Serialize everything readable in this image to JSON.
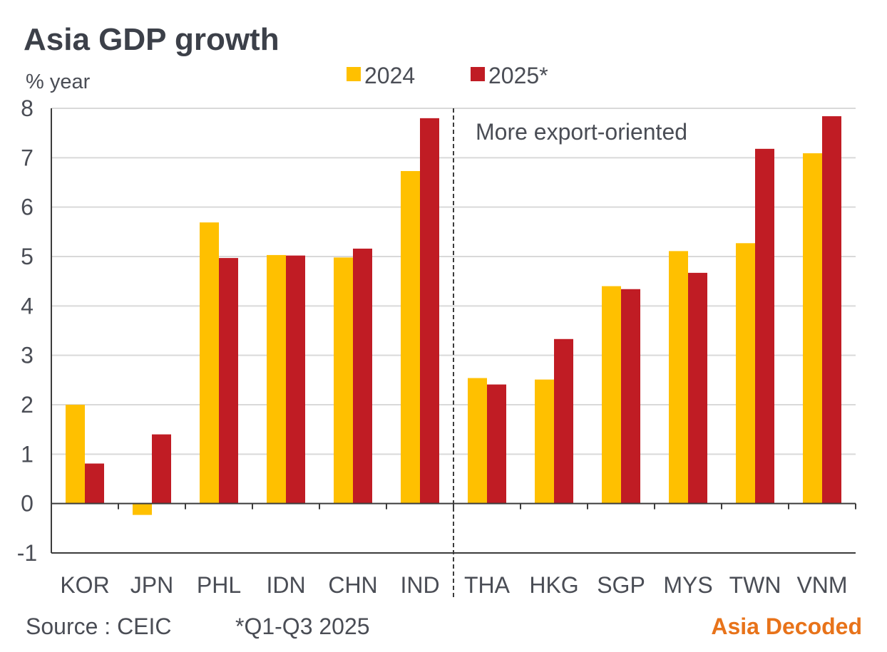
{
  "chart_data": {
    "type": "bar",
    "title": "Asia GDP growth",
    "ylabel": "% year",
    "xlabel": "",
    "ylim": [
      -1,
      8
    ],
    "yticks": [
      "-1",
      "0",
      "1",
      "2",
      "3",
      "4",
      "5",
      "6",
      "7",
      "8"
    ],
    "categories": [
      "KOR",
      "JPN",
      "PHL",
      "IDN",
      "CHN",
      "IND",
      "THA",
      "HKG",
      "SGP",
      "MYS",
      "TWN",
      "VNM"
    ],
    "series": [
      {
        "name": "2024",
        "color": "#ffc000",
        "values": [
          2.0,
          -0.23,
          5.69,
          5.03,
          4.98,
          6.73,
          2.54,
          2.51,
          4.4,
          5.11,
          5.27,
          7.09
        ]
      },
      {
        "name": "2025*",
        "color": "#c01c24",
        "values": [
          0.81,
          1.4,
          4.97,
          5.02,
          5.16,
          7.8,
          2.41,
          3.33,
          4.34,
          4.67,
          7.18,
          7.84
        ]
      }
    ],
    "annotation": "More export-oriented",
    "divider_after_category": "IND",
    "grid": true,
    "legend_position": "top"
  },
  "footer": {
    "source": "Source : CEIC",
    "note": "*Q1-Q3 2025",
    "brand": "Asia Decoded"
  }
}
